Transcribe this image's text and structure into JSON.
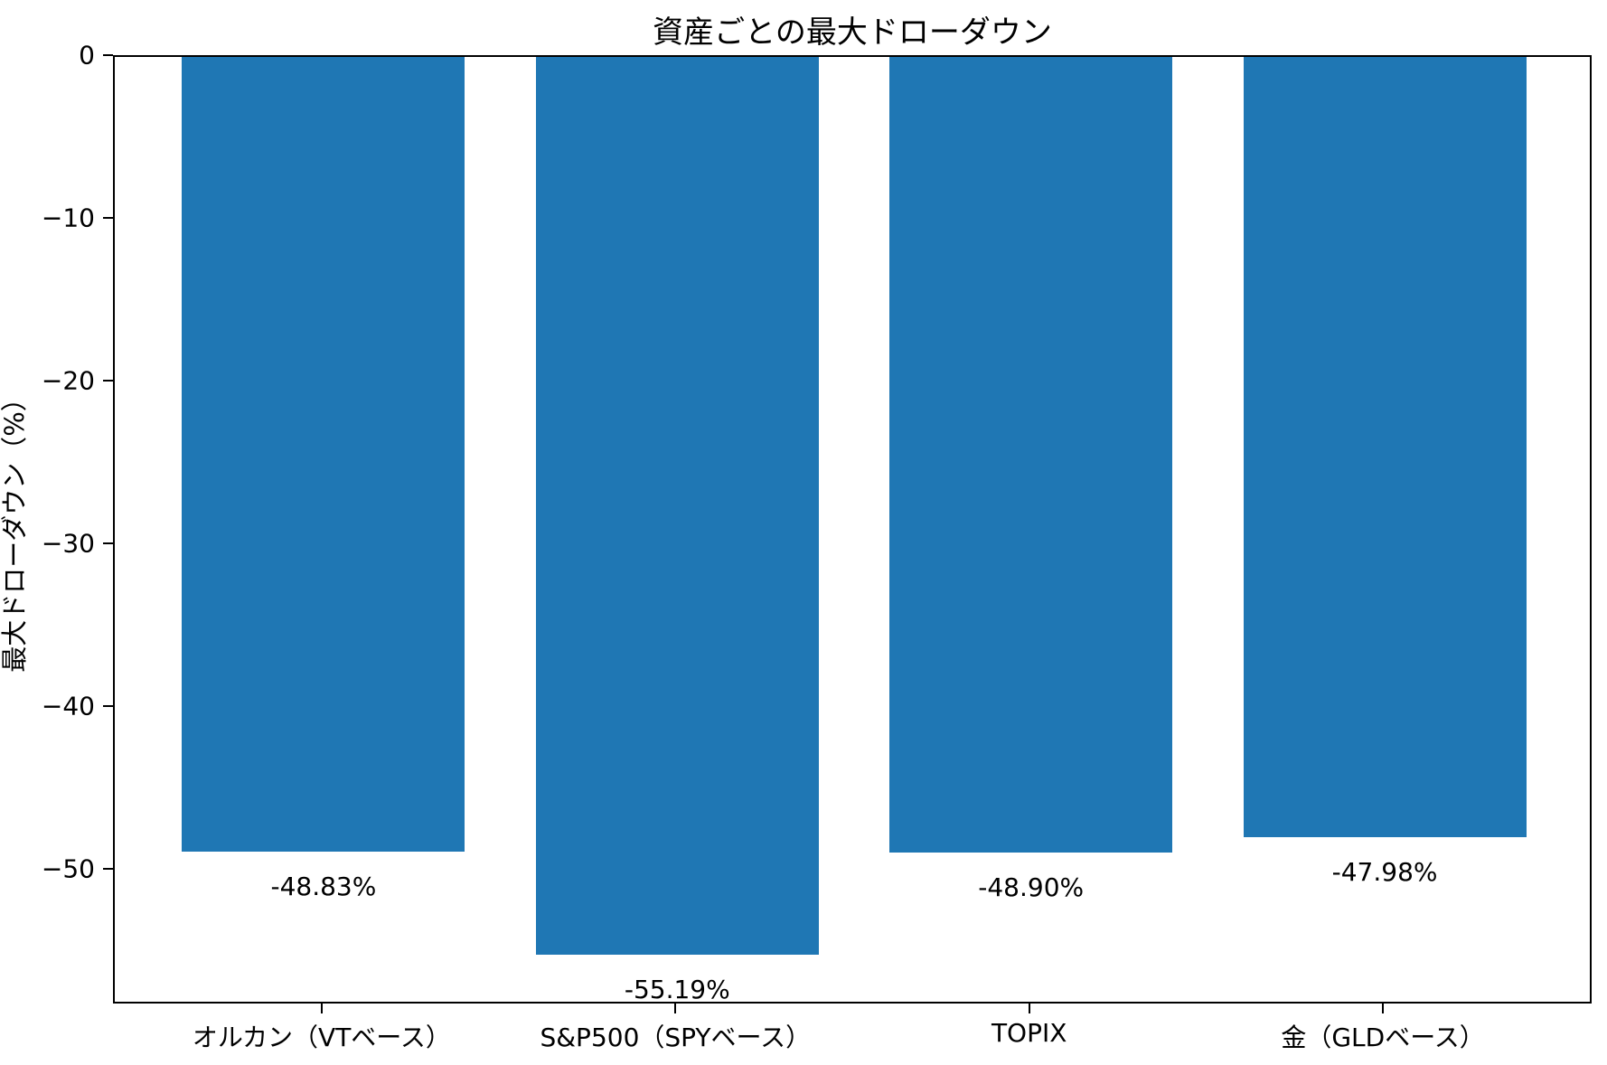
{
  "chart_data": {
    "type": "bar",
    "title": "資産ごとの最大ドローダウン",
    "ylabel": "最大ドローダウン（%）",
    "xlabel": "",
    "categories": [
      "オルカン（VTベース）",
      "S&P500（SPYベース）",
      "TOPIX",
      "金（GLDベース）"
    ],
    "values": [
      -48.83,
      -55.19,
      -48.9,
      -47.98
    ],
    "bar_labels": [
      "-48.83%",
      "-55.19%",
      "-48.90%",
      "-47.98%"
    ],
    "yticks": [
      0,
      -10,
      -20,
      -30,
      -40,
      -50
    ],
    "ytick_labels": [
      "0",
      "−10",
      "−20",
      "−30",
      "−40",
      "−50"
    ],
    "ylim": [
      -58.3,
      0
    ],
    "xlim": [
      -0.59,
      3.59
    ],
    "bar_width_units": 0.8,
    "bar_color": "#1f77b4",
    "grid": false,
    "legend": null
  }
}
